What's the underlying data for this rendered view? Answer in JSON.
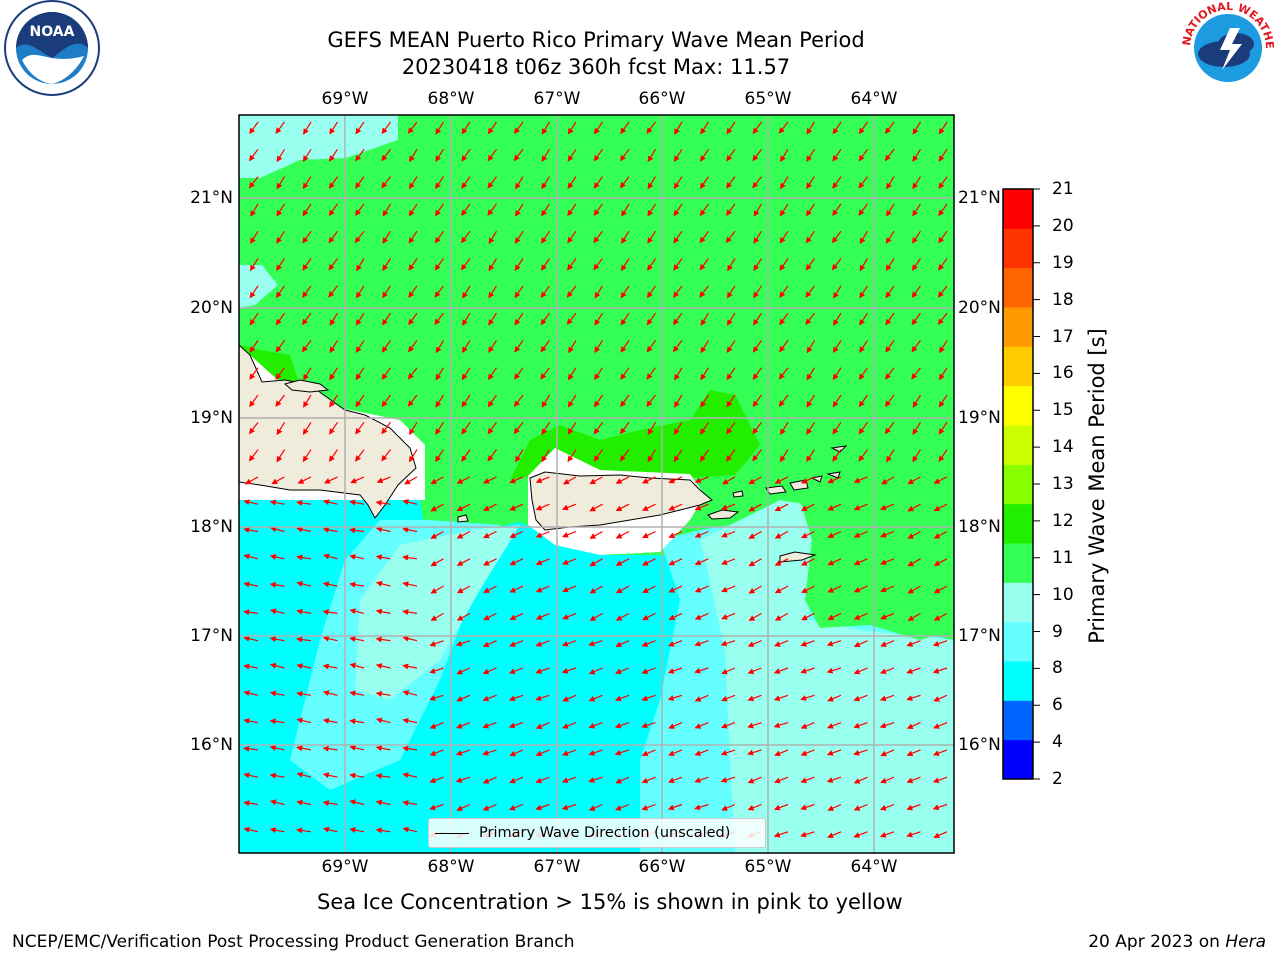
{
  "title": {
    "line1": "GEFS MEAN Puerto Rico Primary Wave Mean Period",
    "line2": "20230418 t06z 360h fcst   Max: 11.57"
  },
  "lon_labels": [
    "69°W",
    "68°W",
    "67°W",
    "66°W",
    "65°W",
    "64°W"
  ],
  "lat_labels": [
    "21°N",
    "20°N",
    "19°N",
    "18°N",
    "17°N",
    "16°N"
  ],
  "colorbar": {
    "title": "Primary Wave Mean Period [s]",
    "ticks": [
      "2",
      "4",
      "6",
      "8",
      "9",
      "10",
      "11",
      "12",
      "13",
      "14",
      "15",
      "16",
      "17",
      "18",
      "19",
      "20",
      "21"
    ],
    "colors": [
      "#0000ff",
      "#0066ff",
      "#00ffff",
      "#66ffff",
      "#99ffee",
      "#33ff55",
      "#22ee00",
      "#88ff00",
      "#ccff00",
      "#ffff00",
      "#ffcc00",
      "#ff9900",
      "#ff6600",
      "#ff3300",
      "#ff0000"
    ]
  },
  "legend": {
    "label": "Primary Wave Direction (unscaled)"
  },
  "ice_note": "Sea Ice Concentration > 15% is shown in pink to yellow",
  "footer": {
    "left": "NCEP/EMC/Verification Post Processing Product Generation Branch",
    "right_date": "20 Apr 2023 on",
    "right_host": "Hera"
  },
  "logos": {
    "noaa_text": "NOAA",
    "nws_text": "NATIONAL WEATHER SERVICE"
  }
}
